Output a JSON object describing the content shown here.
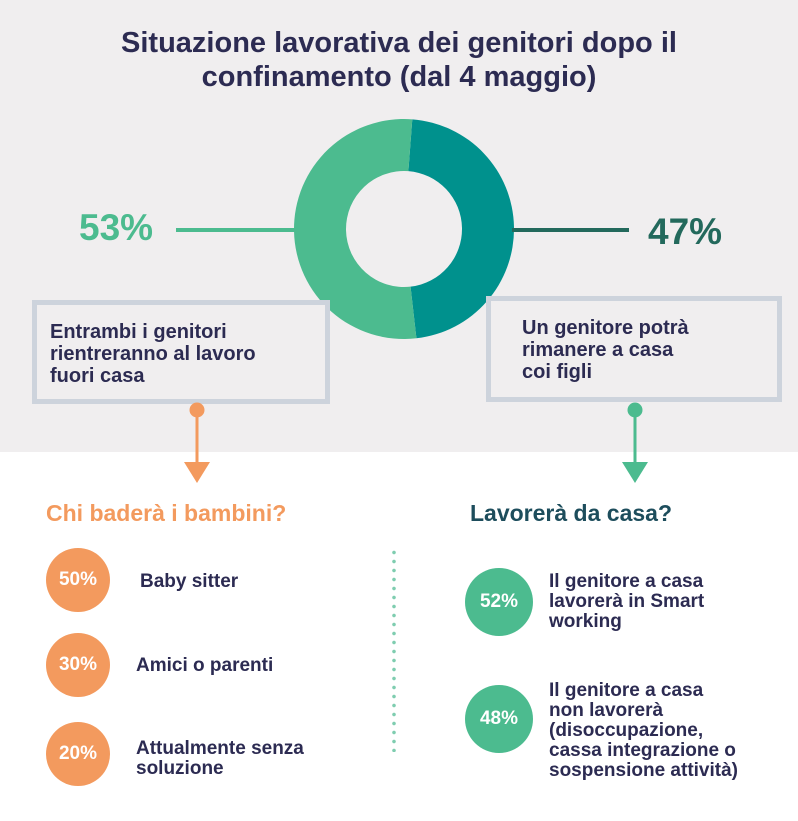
{
  "title_line1": "Situazione lavorativa dei genitori dopo il",
  "title_line2": "confinamento (dal 4 maggio)",
  "colors": {
    "navy": "#2c2b52",
    "green_light": "#4cbb8f",
    "green_dark": "#00918d",
    "orange": "#f39a5e",
    "panel_bg": "#f0eeef",
    "box_border": "#cdd3dc"
  },
  "chart_data": {
    "type": "pie",
    "title": "Situazione lavorativa dei genitori dopo il confinamento (dal 4 maggio)",
    "slices": [
      {
        "label": "Entrambi i genitori rientreranno al lavoro fuori casa",
        "value": 53,
        "display": "53%",
        "color": "#4cbb8f"
      },
      {
        "label": "Un genitore potrà rimanere a casa coi figli",
        "value": 47,
        "display": "47%",
        "color": "#00918d"
      }
    ]
  },
  "left_box": {
    "line1": "Entrambi i genitori",
    "line2": "rientreranno al lavoro",
    "line3": "fuori casa"
  },
  "right_box": {
    "line1": "Un genitore potrà",
    "line2": "rimanere a casa",
    "line3": "coi figli"
  },
  "left_section": {
    "title": "Chi baderà i bambini?",
    "items": [
      {
        "pct": "50%",
        "label1": "Baby sitter",
        "label2": ""
      },
      {
        "pct": "30%",
        "label1": "Amici o parenti",
        "label2": ""
      },
      {
        "pct": "20%",
        "label1": "Attualmente senza",
        "label2": "soluzione"
      }
    ]
  },
  "right_section": {
    "title": "Lavorerà da casa?",
    "items": [
      {
        "pct": "52%",
        "lines": [
          "Il genitore a casa",
          "lavorerà in Smart",
          "working"
        ]
      },
      {
        "pct": "48%",
        "lines": [
          "Il genitore a casa",
          "non lavorerà",
          "(disoccupazione,",
          "cassa integrazione o",
          "sospensione attività)"
        ]
      }
    ]
  }
}
